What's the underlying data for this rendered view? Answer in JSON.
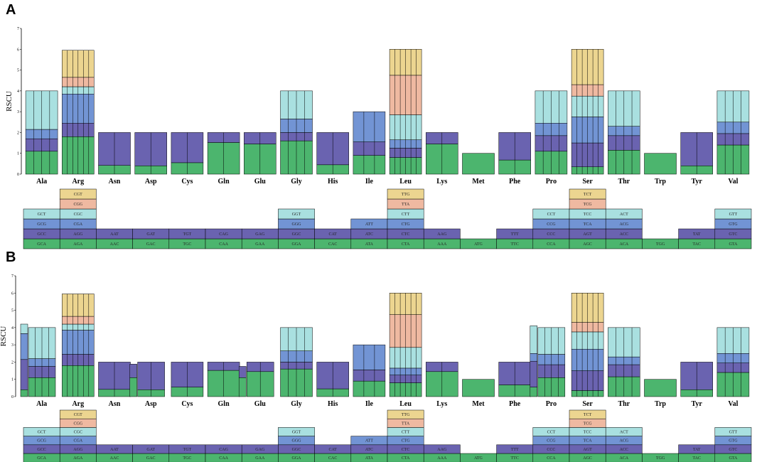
{
  "colors": [
    "#4cb56e",
    "#6a63b0",
    "#7294d4",
    "#a9e0e0",
    "#efb9a1",
    "#ecd590"
  ],
  "chart_data": [
    {
      "panel": "A",
      "type": "bar",
      "ylabel": "RSCU",
      "ylim": [
        0,
        7
      ],
      "yticks": [
        0,
        1,
        2,
        3,
        4,
        5,
        6,
        7
      ],
      "stacked": true,
      "groups": [
        {
          "aa": "Ala",
          "bars": [
            {
              "sub": [
                1.1,
                0.6,
                0.45,
                1.85
              ]
            }
          ],
          "codons": [
            "GCA",
            "GCC",
            "GCG",
            "GCT"
          ]
        },
        {
          "aa": "Arg",
          "bars": [
            {
              "sub": [
                1.8,
                0.65,
                1.4,
                0.35,
                0.45,
                1.3
              ]
            }
          ],
          "codons": [
            "AGA",
            "AGG",
            "CGA",
            "CGC",
            "CGG",
            "CGT"
          ]
        },
        {
          "aa": "Asn",
          "bars": [
            {
              "sub": [
                0.42,
                1.58
              ]
            }
          ],
          "codons": [
            "AAC",
            "AAT"
          ]
        },
        {
          "aa": "Asp",
          "bars": [
            {
              "sub": [
                0.4,
                1.6
              ]
            }
          ],
          "codons": [
            "GAC",
            "GAT"
          ]
        },
        {
          "aa": "Cys",
          "bars": [
            {
              "sub": [
                0.55,
                1.45
              ]
            }
          ],
          "codons": [
            "TGC",
            "TGT"
          ]
        },
        {
          "aa": "Gln",
          "bars": [
            {
              "sub": [
                1.52,
                0.48
              ]
            }
          ],
          "codons": [
            "CAA",
            "CAG"
          ]
        },
        {
          "aa": "Glu",
          "bars": [
            {
              "sub": [
                1.45,
                0.55
              ]
            }
          ],
          "codons": [
            "GAA",
            "GAG"
          ]
        },
        {
          "aa": "Gly",
          "bars": [
            {
              "sub": [
                1.6,
                0.4,
                0.65,
                1.35
              ]
            }
          ],
          "codons": [
            "GGA",
            "GGC",
            "GGG",
            "GGT"
          ]
        },
        {
          "aa": "His",
          "bars": [
            {
              "sub": [
                0.45,
                1.55
              ]
            }
          ],
          "codons": [
            "CAC",
            "CAT"
          ]
        },
        {
          "aa": "Ile",
          "bars": [
            {
              "sub": [
                0.9,
                0.65,
                1.45
              ]
            }
          ],
          "codons": [
            "ATA",
            "ATC",
            "ATT"
          ]
        },
        {
          "aa": "Leu",
          "bars": [
            {
              "sub": [
                0.8,
                0.45,
                0.4,
                1.2,
                1.9,
                1.25
              ]
            }
          ],
          "codons": [
            "CTA",
            "CTC",
            "CTG",
            "CTT",
            "TTA",
            "TTG"
          ]
        },
        {
          "aa": "Lys",
          "bars": [
            {
              "sub": [
                1.45,
                0.55
              ]
            }
          ],
          "codons": [
            "AAA",
            "AAG"
          ]
        },
        {
          "aa": "Met",
          "bars": [
            {
              "sub": [
                1.0
              ]
            }
          ],
          "codons": [
            "ATG"
          ]
        },
        {
          "aa": "Phe",
          "bars": [
            {
              "sub": [
                0.68,
                1.32
              ]
            }
          ],
          "codons": [
            "TTC",
            "TTT"
          ]
        },
        {
          "aa": "Pro",
          "bars": [
            {
              "sub": [
                1.1,
                0.75,
                0.6,
                1.55
              ]
            }
          ],
          "codons": [
            "CCA",
            "CCC",
            "CCG",
            "CCT"
          ]
        },
        {
          "aa": "Ser",
          "bars": [
            {
              "sub": [
                0.35,
                1.15,
                1.25,
                1.0,
                0.55,
                1.7
              ]
            }
          ],
          "codons": [
            "AGC",
            "AGT",
            "TCA",
            "TCC",
            "TCG",
            "TCT"
          ]
        },
        {
          "aa": "Thr",
          "bars": [
            {
              "sub": [
                1.15,
                0.7,
                0.45,
                1.7
              ]
            }
          ],
          "codons": [
            "ACA",
            "ACC",
            "ACG",
            "ACT"
          ]
        },
        {
          "aa": "Trp",
          "bars": [
            {
              "sub": [
                1.0
              ]
            }
          ],
          "codons": [
            "TGG"
          ]
        },
        {
          "aa": "Tyr",
          "bars": [
            {
              "sub": [
                0.4,
                1.6
              ]
            }
          ],
          "codons": [
            "TAC",
            "TAT"
          ]
        },
        {
          "aa": "Val",
          "bars": [
            {
              "sub": [
                1.4,
                0.55,
                0.55,
                1.5
              ]
            }
          ],
          "codons": [
            "GTA",
            "GTC",
            "GTG",
            "GTT"
          ]
        }
      ]
    },
    {
      "panel": "B",
      "type": "bar",
      "ylabel": "RSCU",
      "ylim": [
        0,
        7
      ],
      "yticks": [
        0,
        1,
        2,
        3,
        4,
        5,
        6,
        7
      ],
      "stacked": true,
      "groups": [
        {
          "aa": "Ala",
          "bars": [
            {
              "sub": [
                0.4,
                1.75,
                1.5,
                0.55
              ]
            },
            {
              "sub": [
                1.1,
                0.65,
                0.45,
                1.8
              ]
            }
          ],
          "codons": [
            "GCA",
            "GCC",
            "GCG",
            "GCT"
          ]
        },
        {
          "aa": "Arg",
          "bars": [
            {
              "sub": [
                1.8,
                0.65,
                1.4,
                0.35,
                0.45,
                1.3
              ]
            }
          ],
          "codons": [
            "AGA",
            "AGG",
            "CGA",
            "CGC",
            "CGG",
            "CGT"
          ]
        },
        {
          "aa": "Asn",
          "bars": [
            {
              "sub": [
                0.42,
                1.58
              ]
            }
          ],
          "codons": [
            "AAC",
            "AAT"
          ]
        },
        {
          "aa": "Asp",
          "bars": [
            {
              "sub": [
                1.1,
                0.78
              ]
            },
            {
              "sub": [
                0.4,
                1.6
              ]
            }
          ],
          "codons": [
            "GAC",
            "GAT"
          ]
        },
        {
          "aa": "Cys",
          "bars": [
            {
              "sub": [
                0.55,
                1.45
              ]
            }
          ],
          "codons": [
            "TGC",
            "TGT"
          ]
        },
        {
          "aa": "Gln",
          "bars": [
            {
              "sub": [
                1.52,
                0.48
              ]
            }
          ],
          "codons": [
            "CAA",
            "CAG"
          ]
        },
        {
          "aa": "Glu",
          "bars": [
            {
              "sub": [
                1.1,
                0.65
              ]
            },
            {
              "sub": [
                1.45,
                0.55
              ]
            }
          ],
          "codons": [
            "GAA",
            "GAG"
          ]
        },
        {
          "aa": "Gly",
          "bars": [
            {
              "sub": [
                1.6,
                0.4,
                0.65,
                1.35
              ]
            }
          ],
          "codons": [
            "GGA",
            "GGC",
            "GGG",
            "GGT"
          ]
        },
        {
          "aa": "His",
          "bars": [
            {
              "sub": [
                0.45,
                1.55
              ]
            }
          ],
          "codons": [
            "CAC",
            "CAT"
          ]
        },
        {
          "aa": "Ile",
          "bars": [
            {
              "sub": [
                0.9,
                0.65,
                1.45
              ]
            }
          ],
          "codons": [
            "ATA",
            "ATC",
            "ATT"
          ]
        },
        {
          "aa": "Leu",
          "bars": [
            {
              "sub": [
                0.8,
                0.45,
                0.4,
                1.2,
                1.9,
                1.25
              ]
            }
          ],
          "codons": [
            "CTA",
            "CTC",
            "CTG",
            "CTT",
            "TTA",
            "TTG"
          ]
        },
        {
          "aa": "Lys",
          "bars": [
            {
              "sub": [
                1.45,
                0.55
              ]
            }
          ],
          "codons": [
            "AAA",
            "AAG"
          ]
        },
        {
          "aa": "Met",
          "bars": [
            {
              "sub": [
                1.0
              ]
            }
          ],
          "codons": [
            "ATG"
          ]
        },
        {
          "aa": "Phe",
          "bars": [
            {
              "sub": [
                0.68,
                1.32
              ]
            }
          ],
          "codons": [
            "TTC",
            "TTT"
          ]
        },
        {
          "aa": "Pro",
          "bars": [
            {
              "sub": [
                0.55,
                1.5,
                0.45,
                1.6
              ]
            },
            {
              "sub": [
                1.1,
                0.75,
                0.6,
                1.55
              ]
            }
          ],
          "codons": [
            "CCA",
            "CCC",
            "CCG",
            "CCT"
          ]
        },
        {
          "aa": "Ser",
          "bars": [
            {
              "sub": [
                0.35,
                1.15,
                1.25,
                1.0,
                0.55,
                1.7
              ]
            }
          ],
          "codons": [
            "AGC",
            "AGT",
            "TCA",
            "TCC",
            "TCG",
            "TCT"
          ]
        },
        {
          "aa": "Thr",
          "bars": [
            {
              "sub": [
                1.15,
                0.7,
                0.45,
                1.7
              ]
            }
          ],
          "codons": [
            "ACA",
            "ACC",
            "ACG",
            "ACT"
          ]
        },
        {
          "aa": "Trp",
          "bars": [
            {
              "sub": [
                1.0
              ]
            }
          ],
          "codons": [
            "TGG"
          ]
        },
        {
          "aa": "Tyr",
          "bars": [
            {
              "sub": [
                0.4,
                1.6
              ]
            }
          ],
          "codons": [
            "TAC",
            "TAT"
          ]
        },
        {
          "aa": "Val",
          "bars": [
            {
              "sub": [
                1.4,
                0.55,
                0.55,
                1.5
              ]
            }
          ],
          "codons": [
            "GTA",
            "GTC",
            "GTG",
            "GTT"
          ]
        }
      ]
    }
  ]
}
